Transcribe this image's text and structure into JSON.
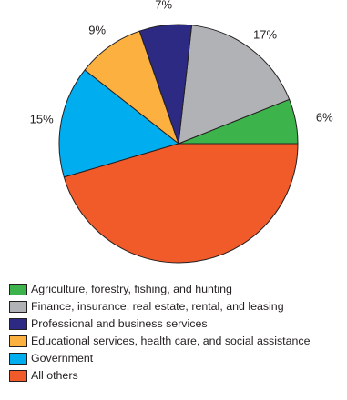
{
  "chart_data": {
    "type": "pie",
    "slices": [
      {
        "label": "Agriculture, forestry, fishing, and hunting",
        "value": 6,
        "value_label": "6%",
        "color": "#3cb44b"
      },
      {
        "label": "Finance, insurance, real estate, rental, and leasing",
        "value": 17,
        "value_label": "17%",
        "color": "#b1b2b5"
      },
      {
        "label": "Professional and business services",
        "value": 7,
        "value_label": "7%",
        "color": "#2c2a83"
      },
      {
        "label": "Educational services, health care, and social assistance",
        "value": 9,
        "value_label": "9%",
        "color": "#fbb040"
      },
      {
        "label": "Government",
        "value": 15,
        "value_label": "15%",
        "color": "#00aeef"
      },
      {
        "label": "All others",
        "value": 45,
        "value_label": "45%",
        "color": "#f15a29"
      }
    ],
    "legend_position": "bottom-left",
    "start": "east (3 o'clock)",
    "direction": "counterclockwise"
  }
}
